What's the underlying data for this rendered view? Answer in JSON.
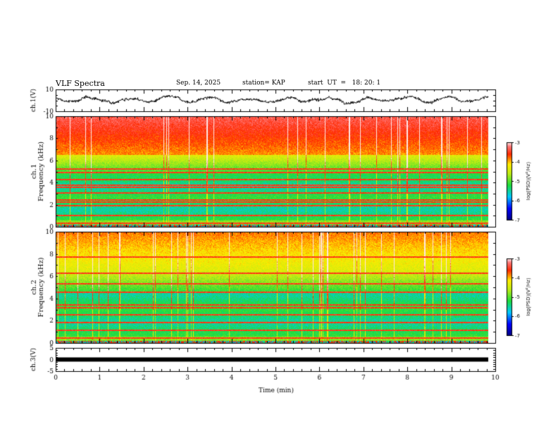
{
  "header": {
    "title": "VLF Spectra",
    "date": "Sep. 14, 2025",
    "station_label": "station= KAP",
    "start_label": "start  UT  =   18: 20: 1"
  },
  "colors": {
    "spectrum_low": "#000080",
    "spectrum_mid_low": "#00e0ff",
    "spectrum_mid": "#22dd22",
    "spectrum_mid_high": "#ffee00",
    "spectrum_high": "#ff2200",
    "spectrum_top": "#ffd8d8"
  },
  "chart_data": [
    {
      "type": "line",
      "panel": "ch1-waveform",
      "ylabel": "ch.1(V)",
      "ylim": [
        -10,
        10
      ],
      "ytick_labels": [
        "10",
        "-10"
      ],
      "x_range_min": [
        0,
        9.8
      ],
      "description_values": "noisy waveform oscillating roughly between -4 and 5 V"
    },
    {
      "type": "heatmap",
      "panel": "ch1-spectrogram",
      "ylabel": "ch.1\nFrequency (kHz)",
      "ylim": [
        0,
        10
      ],
      "ytick_labels": [
        "0",
        "2",
        "4",
        "6",
        "8",
        "10"
      ],
      "colorbar": {
        "label": "log(PSD)(V²/Hz)",
        "range": [
          -7,
          -3
        ],
        "tick_labels": [
          "-3",
          "-4",
          "-5",
          "-6",
          "-7"
        ]
      }
    },
    {
      "type": "heatmap",
      "panel": "ch2-spectrogram",
      "ylabel": "ch.2\nFrequency (kHz)",
      "ylim": [
        0,
        10
      ],
      "ytick_labels": [
        "0",
        "2",
        "4",
        "6",
        "8",
        "10"
      ],
      "colorbar": {
        "label": "log(PSD)(V²/Hz)",
        "range": [
          -7,
          -3
        ],
        "tick_labels": [
          "-3",
          "-4",
          "-5",
          "-6",
          "-7"
        ]
      }
    },
    {
      "type": "line",
      "panel": "ch3-waveform",
      "ylabel": "ch.3(V)",
      "ylim": [
        -5,
        5
      ],
      "ytick_labels": [
        "5",
        "0",
        "-5"
      ],
      "constant_value": 0
    }
  ],
  "xaxis": {
    "label": "Time (min)",
    "xlim": [
      0,
      10
    ],
    "tick_labels": [
      "0",
      "1",
      "2",
      "3",
      "4",
      "5",
      "6",
      "7",
      "8",
      "9",
      "10"
    ]
  }
}
